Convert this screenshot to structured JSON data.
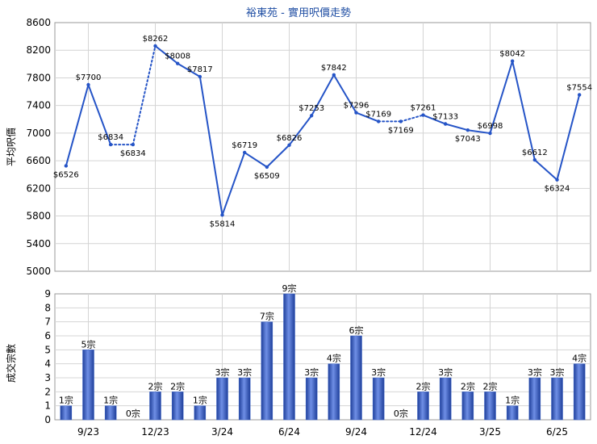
{
  "chart_data": [
    {
      "type": "line",
      "title": "裕東苑 - 實用呎價走勢",
      "ylabel": "平均呎價",
      "ylim": [
        5000,
        8600
      ],
      "yticks": [
        5000,
        5400,
        5800,
        6200,
        6600,
        7000,
        7400,
        7800,
        8200,
        8600
      ],
      "x_tick_labels": [
        "9/23",
        "12/23",
        "3/24",
        "6/24",
        "9/24",
        "12/24",
        "3/25",
        "6/25"
      ],
      "x_tick_index": [
        1,
        4,
        7,
        10,
        13,
        16,
        19,
        22
      ],
      "labels": [
        "$6526",
        "$7700",
        "$6834",
        "$6834",
        "$8262",
        "$8008",
        "$7817",
        "$5814",
        "$6719",
        "$6509",
        "$6826",
        "$7253",
        "$7842",
        "$7296",
        "$7169",
        "$7169",
        "$7261",
        "$7133",
        "$7043",
        "$6998",
        "$8042",
        "$6612",
        "$6324",
        "$7554"
      ],
      "values": [
        6526,
        7700,
        6834,
        6834,
        8262,
        8008,
        7817,
        5814,
        6719,
        6509,
        6826,
        7253,
        7842,
        7296,
        7169,
        7169,
        7261,
        7133,
        7043,
        6998,
        8042,
        6612,
        6324,
        7554
      ],
      "interpolated": [
        false,
        false,
        false,
        true,
        false,
        false,
        false,
        false,
        false,
        false,
        false,
        false,
        false,
        false,
        false,
        true,
        false,
        false,
        false,
        false,
        false,
        false,
        false,
        false
      ],
      "line_color": "#2554c7",
      "grid": true
    },
    {
      "type": "bar",
      "ylabel": "成交宗數",
      "ylim": [
        0,
        9
      ],
      "yticks": [
        0,
        1,
        2,
        3,
        4,
        5,
        6,
        7,
        8,
        9
      ],
      "labels": [
        "1宗",
        "5宗",
        "1宗",
        "0宗",
        "2宗",
        "2宗",
        "1宗",
        "3宗",
        "3宗",
        "7宗",
        "9宗",
        "3宗",
        "4宗",
        "6宗",
        "3宗",
        "0宗",
        "2宗",
        "3宗",
        "2宗",
        "2宗",
        "1宗",
        "3宗",
        "3宗",
        "4宗"
      ],
      "values": [
        1,
        5,
        1,
        0,
        2,
        2,
        1,
        3,
        3,
        7,
        9,
        3,
        4,
        6,
        3,
        0,
        2,
        3,
        2,
        2,
        1,
        3,
        3,
        4
      ],
      "bar_color": "#3a63c7",
      "grid": true
    }
  ]
}
